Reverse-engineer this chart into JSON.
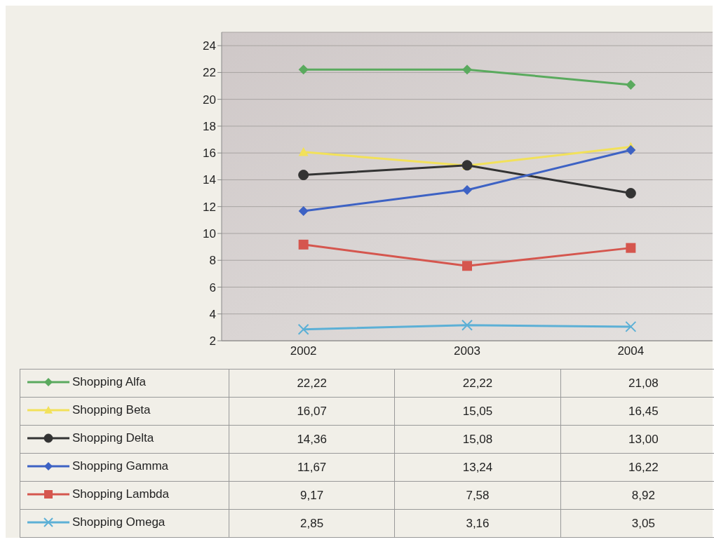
{
  "chart_data": {
    "type": "line",
    "categories": [
      "2002",
      "2003",
      "2004"
    ],
    "series": [
      {
        "name": "Shopping Alfa",
        "color": "#5aaa5e",
        "marker": "diamond",
        "values": [
          22.22,
          22.22,
          21.08
        ],
        "value_labels": [
          "22,22",
          "22,22",
          "21,08"
        ]
      },
      {
        "name": "Shopping Beta",
        "color": "#f2e15a",
        "marker": "triangle",
        "values": [
          16.07,
          15.05,
          16.45
        ],
        "value_labels": [
          "16,07",
          "15,05",
          "16,45"
        ]
      },
      {
        "name": "Shopping Delta",
        "color": "#333333",
        "marker": "circle",
        "values": [
          14.36,
          15.08,
          13.0
        ],
        "value_labels": [
          "14,36",
          "15,08",
          "13,00"
        ]
      },
      {
        "name": "Shopping Gamma",
        "color": "#3d62c4",
        "marker": "diamond",
        "values": [
          11.67,
          13.24,
          16.22
        ],
        "value_labels": [
          "11,67",
          "13,24",
          "16,22"
        ]
      },
      {
        "name": "Shopping Lambda",
        "color": "#d5564e",
        "marker": "square",
        "values": [
          9.17,
          7.58,
          8.92
        ],
        "value_labels": [
          "9,17",
          "7,58",
          "8,92"
        ]
      },
      {
        "name": "Shopping Omega",
        "color": "#5cb0d6",
        "marker": "cross",
        "values": [
          2.85,
          3.16,
          3.05
        ],
        "value_labels": [
          "2,85",
          "3,16",
          "3,05"
        ]
      }
    ],
    "ylim": [
      2,
      25
    ],
    "yticks": [
      2,
      4,
      6,
      8,
      10,
      12,
      14,
      16,
      18,
      20,
      22,
      24
    ],
    "grid": "y",
    "legend": "bottom",
    "line_style": "solid"
  }
}
